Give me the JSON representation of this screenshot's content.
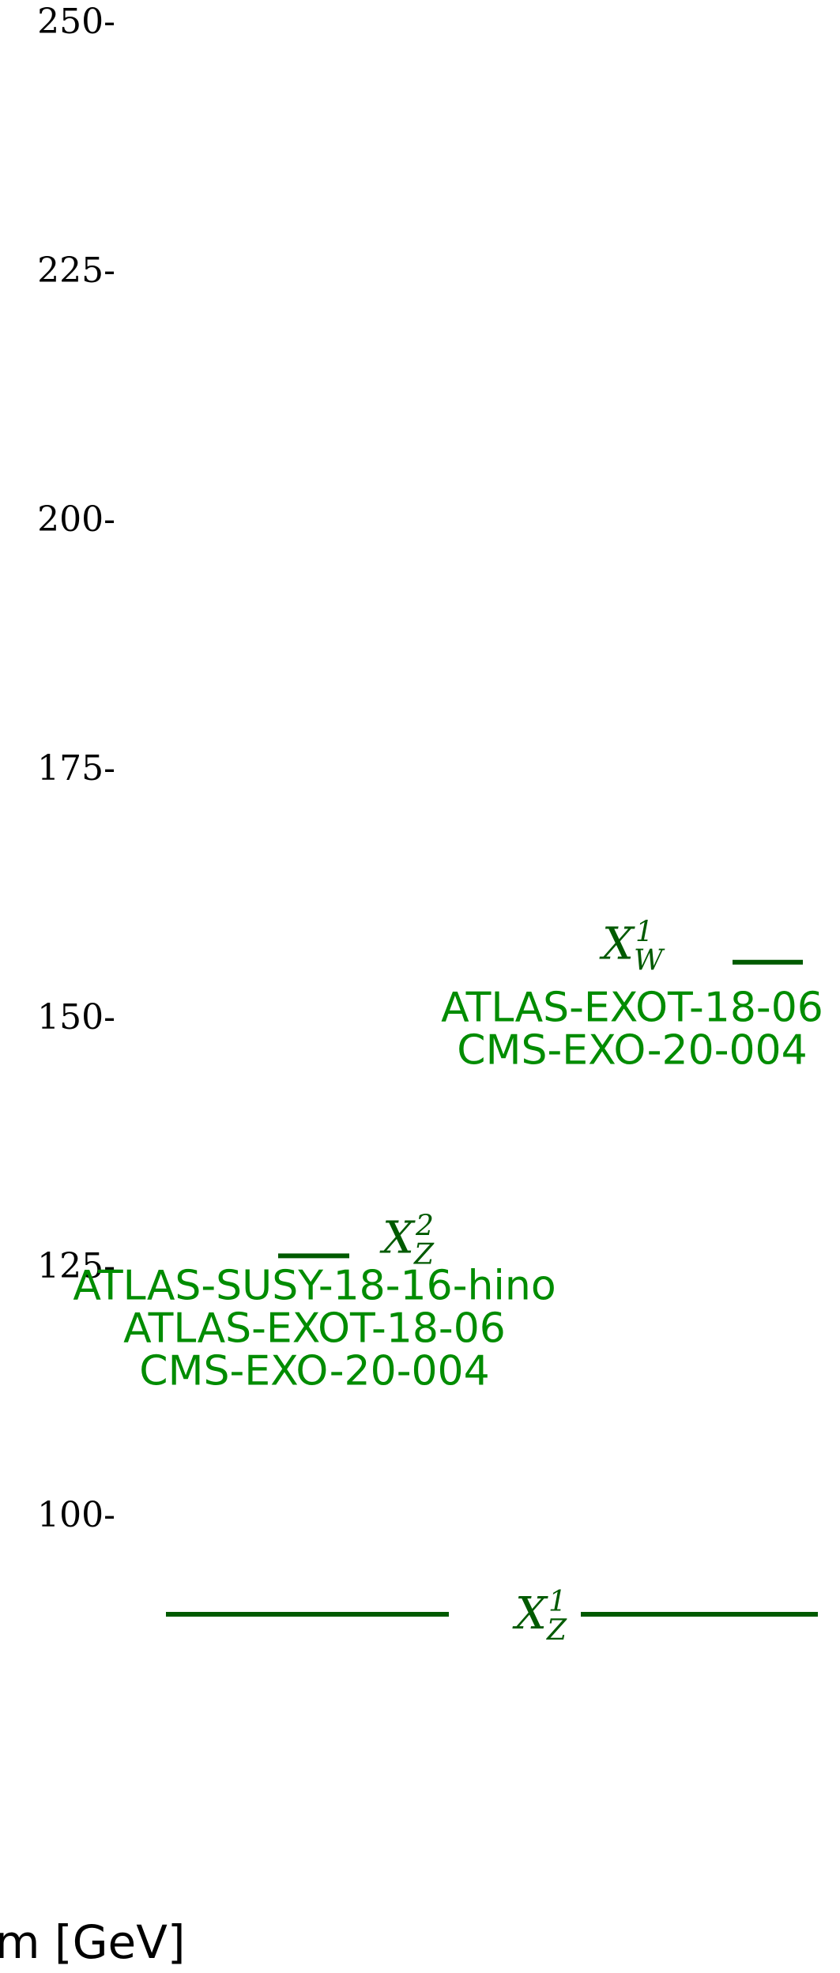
{
  "chart_data": {
    "type": "mass-spectrum",
    "ylabel": "m [GeV]",
    "ylim": [
      80,
      250
    ],
    "yticks": [
      100,
      125,
      150,
      175,
      200,
      225,
      250
    ],
    "colors": {
      "line": "#005a00",
      "label": "#008c00",
      "text": "#000000"
    },
    "particles": [
      {
        "id": "xz1",
        "name": "X",
        "sub": "Z",
        "sup": "1",
        "mass": 90,
        "analyses": []
      },
      {
        "id": "xz2",
        "name": "X",
        "sub": "Z",
        "sup": "2",
        "mass": 126,
        "analyses": [
          "ATLAS-SUSY-18-16-hino",
          "ATLAS-EXOT-18-06",
          "CMS-EXO-20-004"
        ]
      },
      {
        "id": "xw1",
        "name": "X",
        "sub": "W",
        "sup": "1",
        "mass": 155.5,
        "analyses": [
          "ATLAS-EXOT-18-06",
          "CMS-EXO-20-004"
        ]
      }
    ]
  }
}
